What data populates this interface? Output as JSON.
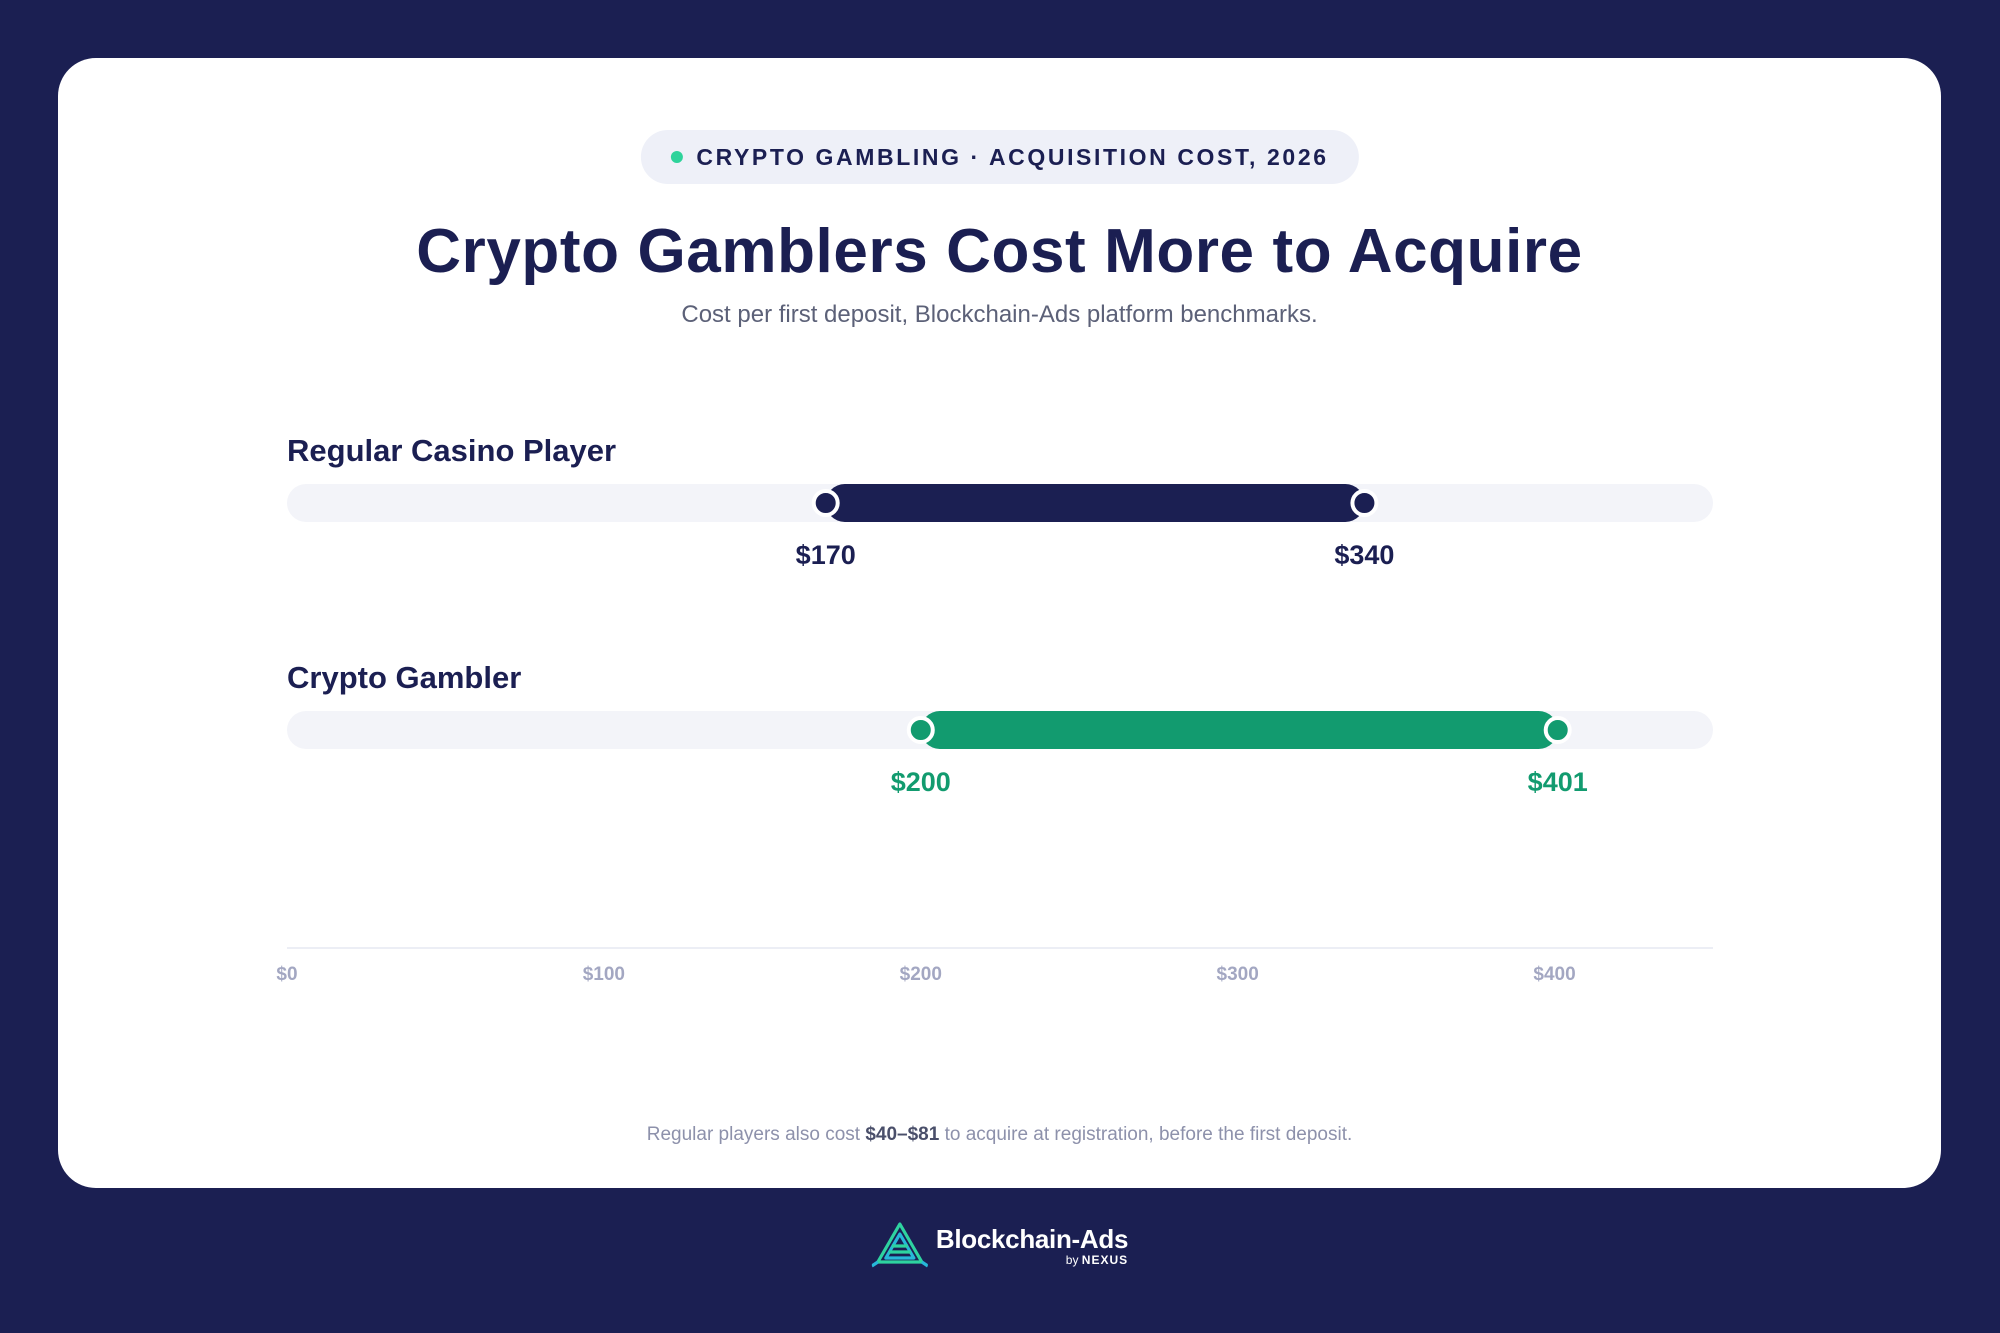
{
  "header": {
    "badge": "CRYPTO GAMBLING · ACQUISITION COST, 2026",
    "title": "Crypto Gamblers Cost More to Acquire",
    "subtitle": "Cost per first deposit, Blockchain-Ads platform benchmarks."
  },
  "chart_data": {
    "type": "range",
    "series": [
      {
        "name": "Regular Casino Player",
        "low": 170,
        "high": 340,
        "low_label": "$170",
        "high_label": "$340",
        "color": "#1b1f52"
      },
      {
        "name": "Crypto Gambler",
        "low": 200,
        "high": 401,
        "low_label": "$200",
        "high_label": "$401",
        "color": "#129b6f"
      }
    ],
    "xlim": [
      0,
      450
    ],
    "ticks": [
      {
        "value": 0,
        "label": "$0"
      },
      {
        "value": 100,
        "label": "$100"
      },
      {
        "value": 200,
        "label": "$200"
      },
      {
        "value": 300,
        "label": "$300"
      },
      {
        "value": 400,
        "label": "$400"
      }
    ],
    "track_color": "#f3f4f9",
    "tick_color": "#a3a7c2"
  },
  "footnote": {
    "before": "Regular players also cost ",
    "bold": "$40–$81",
    "after": " to acquire at registration, before the first deposit."
  },
  "brand": {
    "name": "Blockchain-Ads",
    "by": "by",
    "partner": "NEXUS"
  }
}
